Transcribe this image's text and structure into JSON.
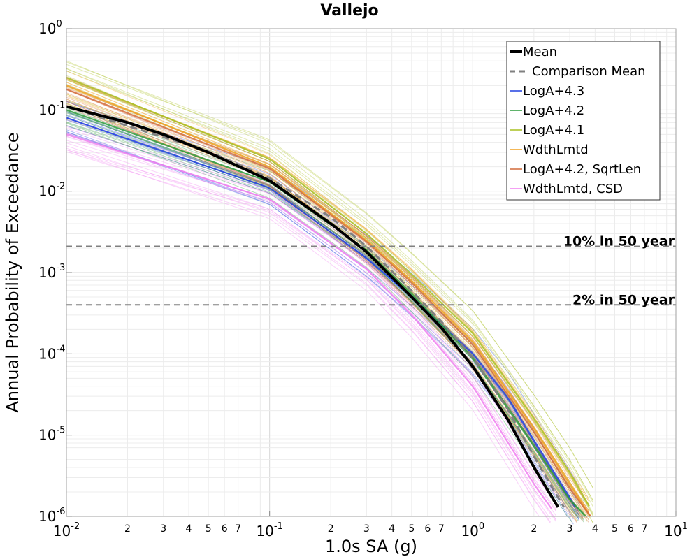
{
  "chart_data": {
    "type": "line",
    "title": "Vallejo",
    "xlabel": "1.0s SA (g)",
    "ylabel": "Annual Probability of Exceedance",
    "x_scale": "log",
    "y_scale": "log",
    "xlim": [
      0.01,
      10
    ],
    "ylim": [
      1e-06,
      1
    ],
    "grid": true,
    "legend_position": "top-right",
    "x_ticks": [
      {
        "value": 0.01,
        "base": "10",
        "exp": "-2"
      },
      {
        "value": 0.1,
        "base": "10",
        "exp": "-1"
      },
      {
        "value": 1,
        "base": "10",
        "exp": "0"
      },
      {
        "value": 10,
        "base": "10",
        "exp": "1"
      }
    ],
    "x_minor_labels": [
      "2",
      "3",
      "4",
      "5",
      "6",
      "7"
    ],
    "y_ticks": [
      {
        "value": 1,
        "base": "10",
        "exp": "0"
      },
      {
        "value": 0.1,
        "base": "10",
        "exp": "-1"
      },
      {
        "value": 0.01,
        "base": "10",
        "exp": "-2"
      },
      {
        "value": 0.001,
        "base": "10",
        "exp": "-3"
      },
      {
        "value": 0.0001,
        "base": "10",
        "exp": "-4"
      },
      {
        "value": 1e-05,
        "base": "10",
        "exp": "-5"
      },
      {
        "value": 1e-06,
        "base": "10",
        "exp": "-6"
      }
    ],
    "reference_lines": [
      {
        "label": "10% in 50 year",
        "y": 0.0021
      },
      {
        "label": "2% in 50 year",
        "y": 0.0004
      }
    ],
    "series": [
      {
        "name": "Mean",
        "color": "#000000",
        "style": "solid-thick",
        "x": [
          0.01,
          0.02,
          0.03,
          0.05,
          0.1,
          0.2,
          0.3,
          0.5,
          0.7,
          1.0,
          1.5,
          2.0,
          2.5,
          2.8
        ],
        "y": [
          0.11,
          0.07,
          0.05,
          0.03,
          0.0135,
          0.004,
          0.0018,
          0.0005,
          0.00021,
          7e-05,
          1.5e-05,
          4e-06,
          1.6e-06,
          1e-06
        ]
      },
      {
        "name": "Comparison Mean",
        "color": "#808080",
        "style": "dashed",
        "x": [
          0.01,
          0.05,
          0.1,
          0.2,
          0.3,
          0.5,
          0.7,
          1.0,
          1.5,
          2.0,
          2.5,
          3.0
        ],
        "y": [
          0.11,
          0.031,
          0.0145,
          0.0048,
          0.0021,
          0.0006,
          0.00025,
          9e-05,
          2e-05,
          5.5e-06,
          2.1e-06,
          1e-06
        ]
      },
      {
        "name": "LogA+4.3",
        "color": "#2040e0",
        "x": [
          0.01,
          0.1,
          0.3,
          0.5,
          1.0,
          1.5,
          2.0,
          3.0,
          3.4
        ],
        "y": [
          0.08,
          0.011,
          0.0015,
          0.0005,
          0.0001,
          2.8e-05,
          8.5e-06,
          1.7e-06,
          1e-06
        ]
      },
      {
        "name": "LogA+4.2",
        "color": "#2a9a3a",
        "x": [
          0.01,
          0.1,
          0.3,
          0.5,
          1.0,
          2.0,
          3.0,
          3.6
        ],
        "y": [
          0.1,
          0.013,
          0.0019,
          0.00055,
          9e-05,
          7.5e-06,
          1.6e-06,
          1e-06
        ]
      },
      {
        "name": "LogA+4.1",
        "color": "#a8c020",
        "x": [
          0.01,
          0.1,
          0.3,
          0.5,
          1.0,
          2.0,
          3.0,
          4.0
        ],
        "y": [
          0.25,
          0.025,
          0.003,
          0.00095,
          0.00018,
          1.6e-05,
          3.5e-06,
          1e-06
        ]
      },
      {
        "name": "WdthLmtd",
        "color": "#f0a020",
        "x": [
          0.01,
          0.1,
          0.3,
          0.5,
          1.0,
          2.0,
          3.0,
          3.8
        ],
        "y": [
          0.2,
          0.02,
          0.0025,
          0.0008,
          0.00014,
          1.2e-05,
          2.5e-06,
          1e-06
        ]
      },
      {
        "name": "LogA+4.2, SqrtLen",
        "color": "#d26a3a",
        "x": [
          0.01,
          0.1,
          0.3,
          0.5,
          1.0,
          2.0,
          3.0,
          3.8
        ],
        "y": [
          0.18,
          0.019,
          0.0024,
          0.00075,
          0.00013,
          1.1e-05,
          2.2e-06,
          1e-06
        ]
      },
      {
        "name": "WdthLmtd, CSD",
        "color": "#f080f0",
        "x": [
          0.01,
          0.1,
          0.3,
          0.5,
          1.0,
          2.0,
          2.6
        ],
        "y": [
          0.05,
          0.008,
          0.0011,
          0.0003,
          4e-05,
          2.5e-06,
          1e-06
        ]
      }
    ]
  }
}
